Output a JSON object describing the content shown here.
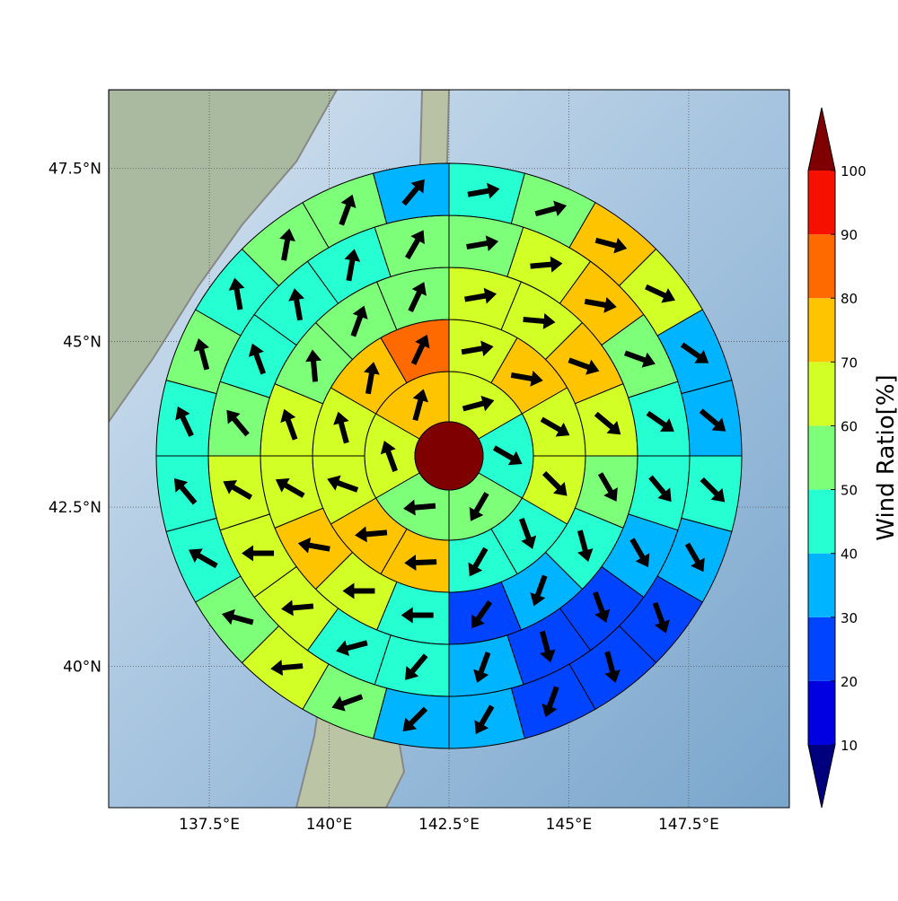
{
  "chart_data": {
    "type": "polar",
    "xlim": [
      135.4,
      149.6
    ],
    "ylim": [
      37.7,
      48.6
    ],
    "xticks": [
      {
        "value": 137.5,
        "label": "137.5°E"
      },
      {
        "value": 140,
        "label": "140°E"
      },
      {
        "value": 142.5,
        "label": "142.5°E"
      },
      {
        "value": 145,
        "label": "145°E"
      },
      {
        "value": 147.5,
        "label": "147.5°E"
      }
    ],
    "yticks": [
      {
        "value": 40,
        "label": "40°N"
      },
      {
        "value": 42.5,
        "label": "42.5°N"
      },
      {
        "value": 45,
        "label": "45°N"
      },
      {
        "value": 47.5,
        "label": "47.5°N"
      }
    ],
    "grid": true,
    "rings": [
      {
        "values": [
          65,
          45,
          55,
          55,
          62,
          72
        ],
        "directions": [
          75,
          120,
          210,
          265,
          340,
          15
        ]
      },
      {
        "values": [
          63,
          72,
          62,
          65,
          45,
          45,
          72,
          72,
          62,
          62,
          73,
          82
        ],
        "directions": [
          80,
          100,
          120,
          135,
          160,
          210,
          268,
          265,
          290,
          345,
          10,
          25
        ]
      },
      {
        "values": [
          62,
          62,
          72,
          62,
          55,
          45,
          35,
          25,
          45,
          62,
          72,
          62,
          62,
          55,
          55,
          55
        ],
        "directions": [
          80,
          95,
          110,
          130,
          150,
          165,
          200,
          215,
          270,
          270,
          280,
          300,
          340,
          355,
          20,
          25
        ]
      },
      {
        "values": [
          55,
          62,
          75,
          55,
          45,
          45,
          35,
          25,
          25,
          35,
          40,
          45,
          62,
          62,
          62,
          50,
          45,
          45,
          45,
          55
        ],
        "directions": [
          80,
          85,
          100,
          110,
          125,
          140,
          150,
          160,
          165,
          200,
          220,
          255,
          265,
          270,
          300,
          320,
          340,
          350,
          10,
          30
        ]
      },
      {
        "values": [
          45,
          55,
          75,
          62,
          35,
          35,
          45,
          35,
          25,
          25,
          25,
          35,
          35,
          55,
          62,
          55,
          45,
          45,
          45,
          55,
          45,
          55,
          55,
          35
        ],
        "directions": [
          80,
          75,
          105,
          115,
          125,
          130,
          135,
          150,
          160,
          165,
          200,
          210,
          225,
          250,
          265,
          285,
          300,
          320,
          335,
          345,
          350,
          10,
          20,
          40
        ]
      }
    ],
    "colorbar": {
      "label": "Wind Ratio[%]",
      "levels": [
        10,
        20,
        30,
        40,
        50,
        60,
        70,
        80,
        90,
        100
      ],
      "colors": [
        "#0000e0",
        "#0044ff",
        "#00b4ff",
        "#26ffd2",
        "#7dff7a",
        "#d2ff26",
        "#ffc400",
        "#ff6a00",
        "#f51000"
      ],
      "under_color": "#00007f",
      "over_color": "#7f0000"
    }
  }
}
